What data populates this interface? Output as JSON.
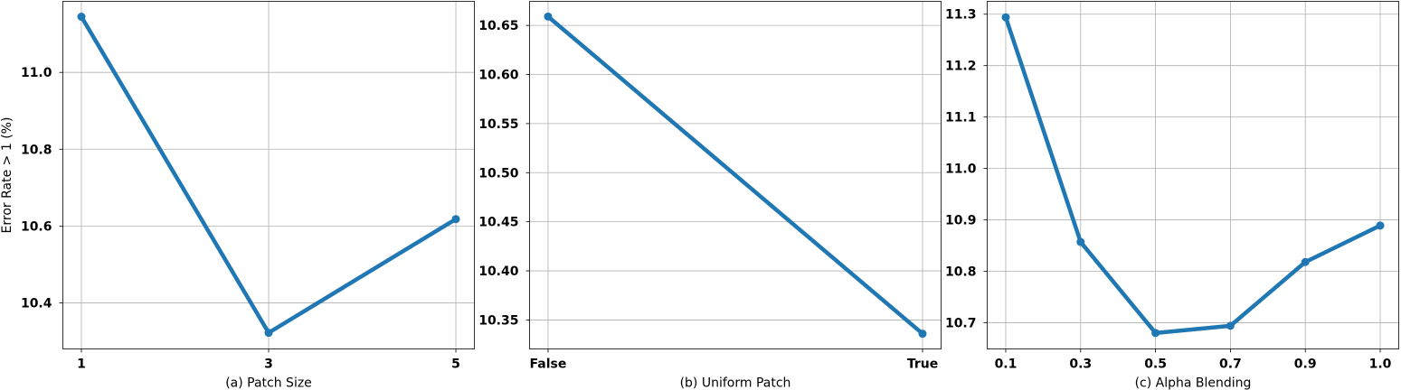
{
  "figure": {
    "shared_ylabel": "Error Rate > 1 (%)"
  },
  "chart_data": [
    {
      "type": "line",
      "xlabel": "(a) Patch Size",
      "ylabel": "Error Rate > 1 (%)",
      "categories": [
        "1",
        "3",
        "5"
      ],
      "series": [
        {
          "values": [
            11.145,
            10.322,
            10.618
          ]
        }
      ],
      "ylim": [
        10.28,
        11.185
      ],
      "yticks": [
        10.4,
        10.6,
        10.8,
        11.0
      ],
      "ytick_labels": [
        "10.4",
        "10.6",
        "10.8",
        "11.0"
      ],
      "grid": true,
      "color": "#1f77b4"
    },
    {
      "type": "line",
      "xlabel": "(b) Uniform Patch",
      "ylabel": "",
      "categories": [
        "False",
        "True"
      ],
      "series": [
        {
          "values": [
            10.659,
            10.336
          ]
        }
      ],
      "ylim": [
        10.3205,
        10.6745
      ],
      "yticks": [
        10.35,
        10.4,
        10.45,
        10.5,
        10.55,
        10.6,
        10.65
      ],
      "ytick_labels": [
        "10.35",
        "10.40",
        "10.45",
        "10.50",
        "10.55",
        "10.60",
        "10.65"
      ],
      "grid": true,
      "color": "#1f77b4"
    },
    {
      "type": "line",
      "xlabel": "(c) Alpha Blending",
      "ylabel": "",
      "categories": [
        "0.1",
        "0.3",
        "0.5",
        "0.7",
        "0.9",
        "1.0"
      ],
      "series": [
        {
          "values": [
            11.294,
            10.857,
            10.68,
            10.694,
            10.818,
            10.889
          ]
        }
      ],
      "ylim": [
        10.649,
        11.325
      ],
      "yticks": [
        10.7,
        10.8,
        10.9,
        11.0,
        11.1,
        11.2,
        11.3
      ],
      "ytick_labels": [
        "10.7",
        "10.8",
        "10.9",
        "11.0",
        "11.1",
        "11.2",
        "11.3"
      ],
      "grid": true,
      "color": "#1f77b4"
    }
  ]
}
